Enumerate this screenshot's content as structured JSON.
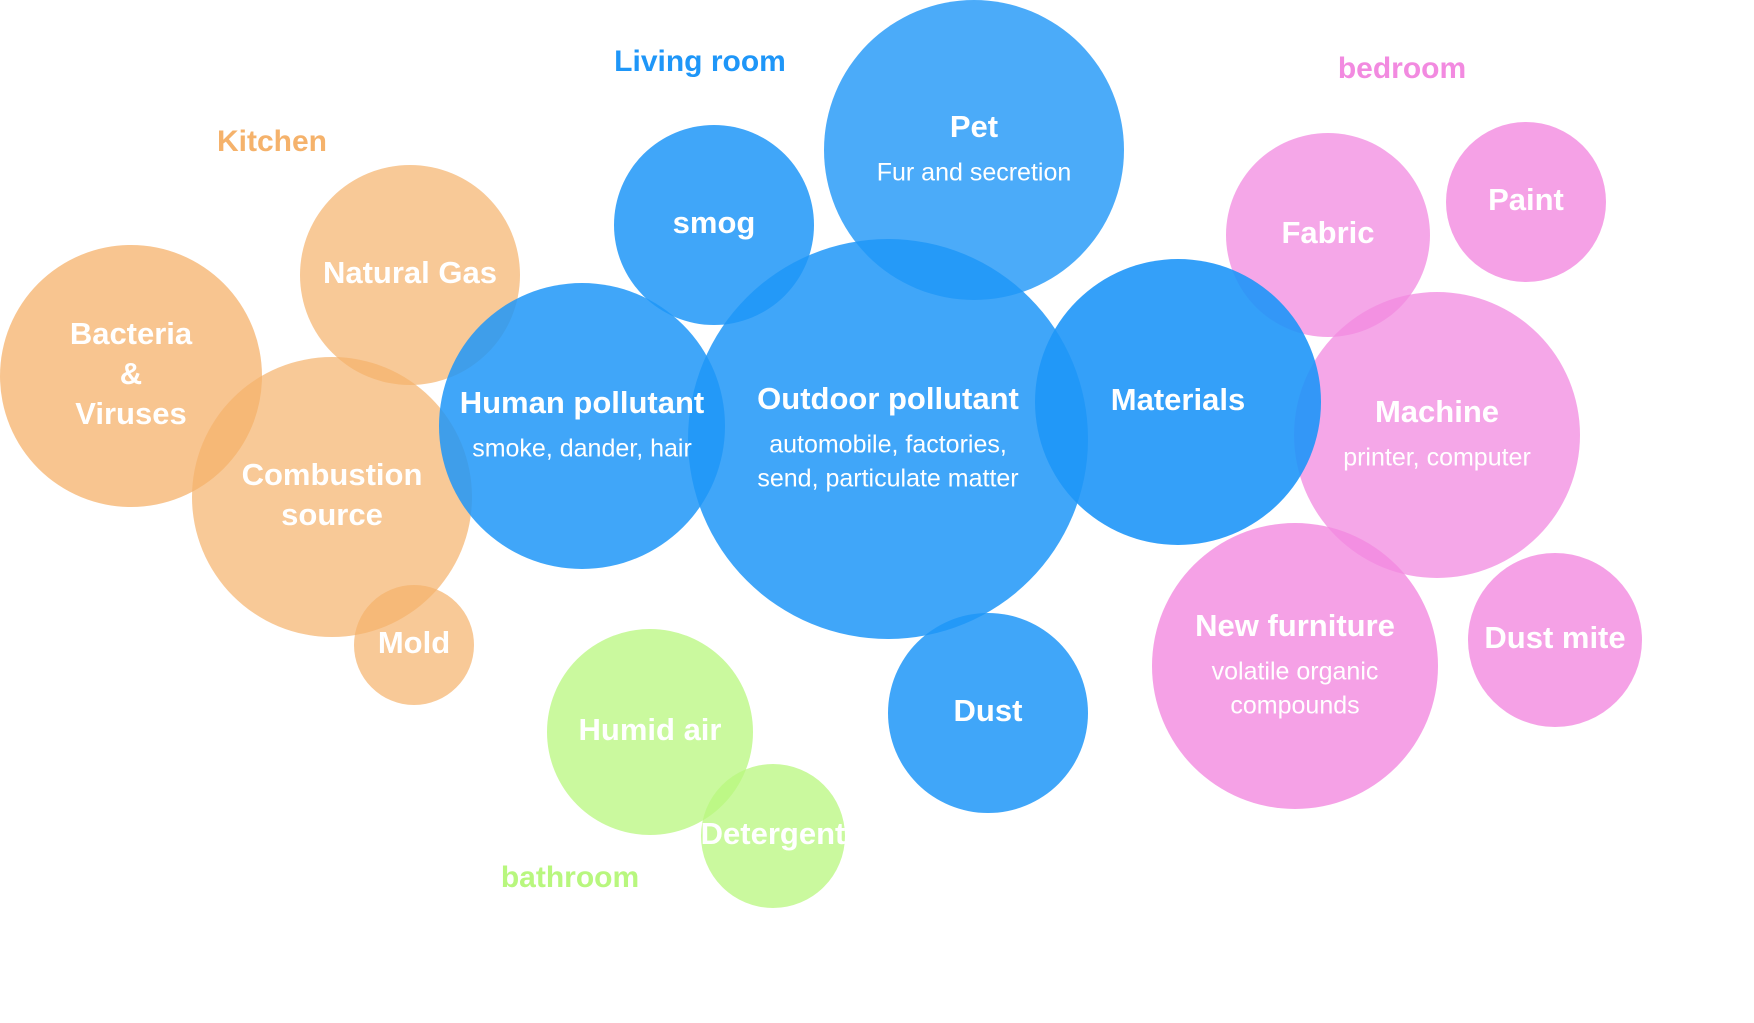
{
  "colors": {
    "kitchen": "#f5b26b",
    "living_room": "#1e96f8",
    "bedroom": "#f28ae0",
    "bathroom": "#b8f77e"
  },
  "groups": [
    {
      "id": "kitchen",
      "title": "Kitchen",
      "color": "#f5b26b",
      "bubbles": [
        {
          "id": "bacteria-viruses",
          "label": [
            "Bacteria",
            "&",
            "Viruses"
          ],
          "sub": []
        },
        {
          "id": "natural-gas",
          "label": [
            "Natural Gas"
          ],
          "sub": []
        },
        {
          "id": "combustion-source",
          "label": [
            "Combustion",
            "source"
          ],
          "sub": []
        },
        {
          "id": "mold",
          "label": [
            "Mold"
          ],
          "sub": []
        }
      ]
    },
    {
      "id": "living-room",
      "title": "Living room",
      "color": "#1e96f8",
      "bubbles": [
        {
          "id": "smog",
          "label": [
            "smog"
          ],
          "sub": []
        },
        {
          "id": "pet",
          "label": [
            "Pet"
          ],
          "sub": [
            "Fur and secretion"
          ]
        },
        {
          "id": "human-pollutant",
          "label": [
            "Human pollutant"
          ],
          "sub": [
            "smoke, dander, hair"
          ]
        },
        {
          "id": "outdoor-pollutant",
          "label": [
            "Outdoor pollutant"
          ],
          "sub": [
            "automobile, factories,",
            "send, particulate matter"
          ]
        },
        {
          "id": "materials",
          "label": [
            "Materials"
          ],
          "sub": []
        },
        {
          "id": "dust",
          "label": [
            "Dust"
          ],
          "sub": []
        }
      ]
    },
    {
      "id": "bedroom",
      "title": "bedroom",
      "color": "#f28ae0",
      "bubbles": [
        {
          "id": "fabric",
          "label": [
            "Fabric"
          ],
          "sub": []
        },
        {
          "id": "paint",
          "label": [
            "Paint"
          ],
          "sub": []
        },
        {
          "id": "machine",
          "label": [
            "Machine"
          ],
          "sub": [
            "printer, computer"
          ]
        },
        {
          "id": "new-furniture",
          "label": [
            "New furniture"
          ],
          "sub": [
            "volatile organic",
            "compounds"
          ]
        },
        {
          "id": "dust-mite",
          "label": [
            "Dust mite"
          ],
          "sub": []
        }
      ]
    },
    {
      "id": "bathroom",
      "title": "bathroom",
      "color": "#b8f77e",
      "bubbles": [
        {
          "id": "humid-air",
          "label": [
            "Humid air"
          ],
          "sub": []
        },
        {
          "id": "detergent",
          "label": [
            "Detergent"
          ],
          "sub": []
        }
      ]
    }
  ]
}
